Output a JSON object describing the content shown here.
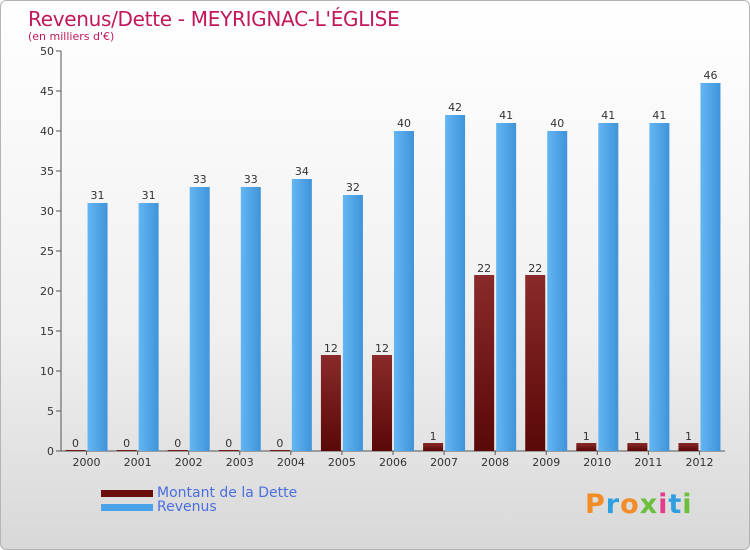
{
  "header": {
    "title": "Revenus/Dette - MEYRIGNAC-L'ÉGLISE",
    "subtitle": "(en milliers d'€)"
  },
  "legend": {
    "debt_label": "Montant de la Dette",
    "revenue_label": "Revenus"
  },
  "logo": {
    "text": "Proxiti"
  },
  "colors": {
    "debt": "#7a1616",
    "revenue": "#4aa3e8",
    "title": "#c2185b",
    "legend_text": "#4a6ee0"
  },
  "chart_data": {
    "type": "bar",
    "title": "Revenus/Dette - MEYRIGNAC-L'ÉGLISE",
    "subtitle": "(en milliers d'€)",
    "xlabel": "",
    "ylabel": "",
    "ylim": [
      0,
      50
    ],
    "yticks": [
      0,
      5,
      10,
      15,
      20,
      25,
      30,
      35,
      40,
      45,
      50
    ],
    "grid": false,
    "legend_position": "bottom-left",
    "categories": [
      "2000",
      "2001",
      "2002",
      "2003",
      "2004",
      "2005",
      "2006",
      "2007",
      "2008",
      "2009",
      "2010",
      "2011",
      "2012"
    ],
    "series": [
      {
        "name": "Montant de la Dette",
        "values": [
          0,
          0,
          0,
          0,
          0,
          12,
          12,
          1,
          22,
          22,
          1,
          1,
          1
        ]
      },
      {
        "name": "Revenus",
        "values": [
          31,
          31,
          33,
          33,
          34,
          32,
          40,
          42,
          41,
          40,
          41,
          41,
          46
        ]
      }
    ]
  }
}
